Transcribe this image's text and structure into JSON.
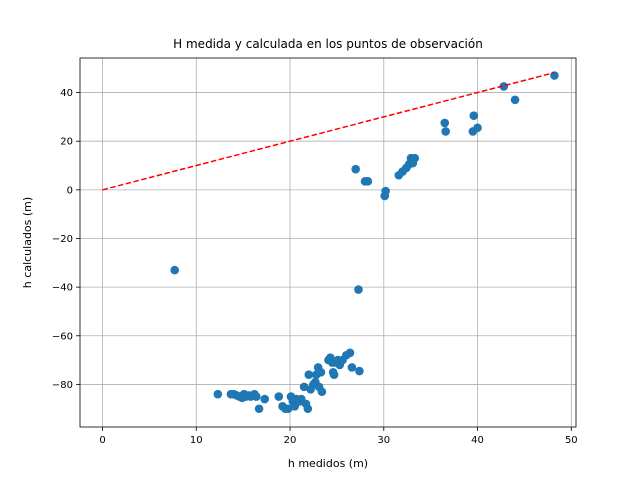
{
  "chart_data": {
    "type": "scatter",
    "title": "H medida y calculada en los puntos de observación",
    "xlabel": "h medidos (m)",
    "ylabel": "h calculados (m)",
    "xlim": [
      -2.4,
      50.5
    ],
    "ylim": [
      -97.5,
      54.2
    ],
    "xticks": [
      0,
      10,
      20,
      30,
      40,
      50
    ],
    "yticks": [
      -80,
      -60,
      -40,
      -20,
      0,
      20,
      40
    ],
    "grid": true,
    "point_color": "#1f77b4",
    "line_color": "#ff0000",
    "series": [
      {
        "type": "scatter",
        "points": [
          [
            7.7,
            -33
          ],
          [
            12.3,
            -84
          ],
          [
            13.7,
            -84
          ],
          [
            14.0,
            -84
          ],
          [
            14.3,
            -84.5
          ],
          [
            14.6,
            -85
          ],
          [
            14.9,
            -85.5
          ],
          [
            15.1,
            -84
          ],
          [
            15.3,
            -85
          ],
          [
            15.6,
            -84.5
          ],
          [
            15.8,
            -85
          ],
          [
            16.2,
            -84
          ],
          [
            16.4,
            -85
          ],
          [
            16.7,
            -90
          ],
          [
            17.3,
            -86
          ],
          [
            18.8,
            -85
          ],
          [
            19.2,
            -89
          ],
          [
            19.5,
            -90
          ],
          [
            19.8,
            -90
          ],
          [
            20.1,
            -85
          ],
          [
            20.3,
            -87
          ],
          [
            20.5,
            -89
          ],
          [
            20.7,
            -86
          ],
          [
            21.0,
            -87
          ],
          [
            21.2,
            -86
          ],
          [
            21.5,
            -81
          ],
          [
            21.7,
            -88
          ],
          [
            21.9,
            -90
          ],
          [
            22.0,
            -76
          ],
          [
            22.2,
            -82
          ],
          [
            22.5,
            -80
          ],
          [
            22.7,
            -79
          ],
          [
            22.8,
            -76
          ],
          [
            23.0,
            -73
          ],
          [
            23.1,
            -81
          ],
          [
            23.3,
            -75
          ],
          [
            23.4,
            -83
          ],
          [
            24.1,
            -70
          ],
          [
            24.3,
            -69
          ],
          [
            24.5,
            -71
          ],
          [
            24.6,
            -75
          ],
          [
            24.7,
            -76
          ],
          [
            24.9,
            -71
          ],
          [
            25.1,
            -70
          ],
          [
            25.3,
            -72
          ],
          [
            25.6,
            -70
          ],
          [
            26.0,
            -68
          ],
          [
            26.4,
            -67
          ],
          [
            26.6,
            -73
          ],
          [
            27.0,
            8.5
          ],
          [
            27.3,
            -41
          ],
          [
            27.4,
            -74.5
          ],
          [
            28.0,
            3.5
          ],
          [
            28.3,
            3.5
          ],
          [
            30.1,
            -2.5
          ],
          [
            30.2,
            -0.5
          ],
          [
            31.6,
            6
          ],
          [
            32.0,
            7.5
          ],
          [
            32.4,
            9
          ],
          [
            32.7,
            10.5
          ],
          [
            32.9,
            13
          ],
          [
            33.1,
            11
          ],
          [
            33.3,
            13
          ],
          [
            36.5,
            27.5
          ],
          [
            36.6,
            24
          ],
          [
            39.5,
            24
          ],
          [
            39.6,
            30.5
          ],
          [
            40.0,
            25.5
          ],
          [
            42.8,
            42.5
          ],
          [
            44.0,
            37
          ],
          [
            48.2,
            47
          ]
        ]
      },
      {
        "type": "line",
        "style": "dashed",
        "points": [
          [
            0,
            0
          ],
          [
            48.2,
            48.2
          ]
        ]
      }
    ]
  }
}
